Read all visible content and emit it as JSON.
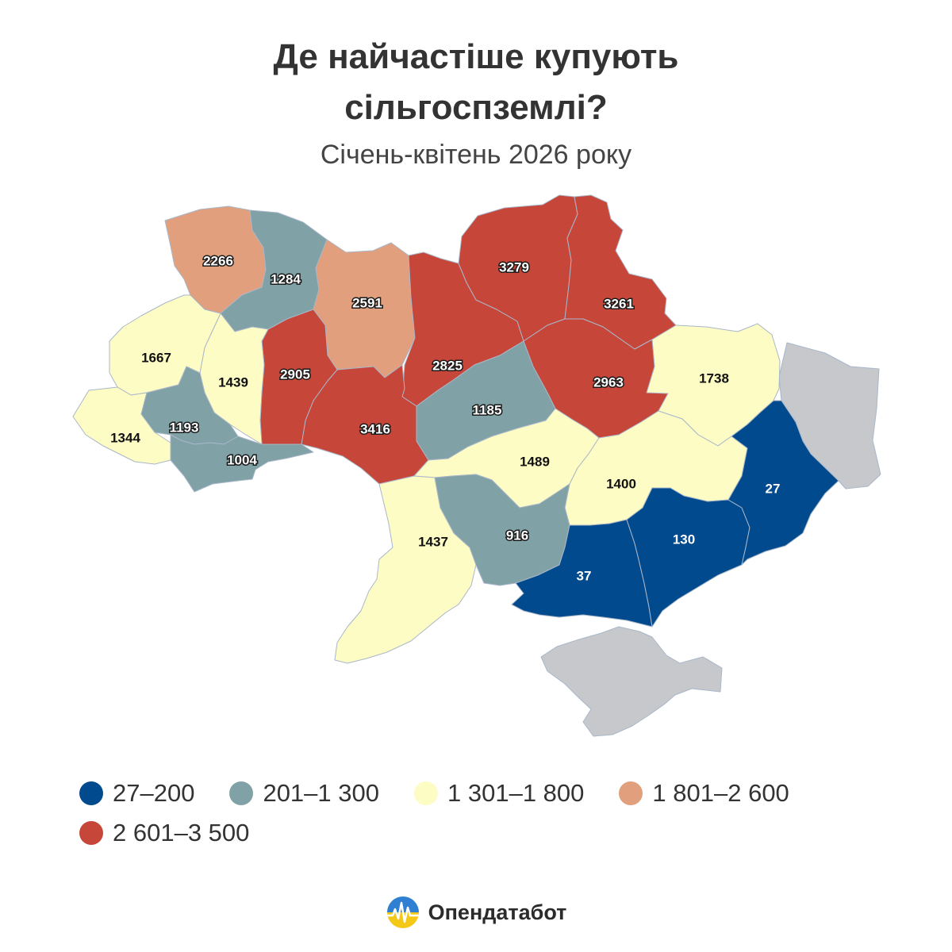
{
  "title_line1": "Де найчастіше купують",
  "title_line2": "сільгоспземлі?",
  "subtitle": "Січень-квітень 2026 року",
  "colors": {
    "bin1": "#024a8e",
    "bin2": "#80a1a5",
    "bin3": "#fefcc5",
    "bin4": "#e19f7d",
    "bin5": "#c6463a",
    "nodata": "#c7c8cb"
  },
  "legend": [
    {
      "label": "27–200",
      "color": "#024a8e"
    },
    {
      "label": "201–1 300",
      "color": "#80a1a5"
    },
    {
      "label": "1 301–1 800",
      "color": "#fefcc5"
    },
    {
      "label": "1 801–2 600",
      "color": "#e19f7d"
    },
    {
      "label": "2 601–3 500",
      "color": "#c6463a"
    }
  ],
  "regions": {
    "volyn": {
      "value": "2266",
      "bin": "bin4"
    },
    "rivne": {
      "value": "1284",
      "bin": "bin2"
    },
    "zhytomyr": {
      "value": "2591",
      "bin": "bin4"
    },
    "kyiv": {
      "value": "2825",
      "bin": "bin5"
    },
    "chernihiv": {
      "value": "3279",
      "bin": "bin5"
    },
    "sumy": {
      "value": "3261",
      "bin": "bin5"
    },
    "kharkiv": {
      "value": "1738",
      "bin": "bin3"
    },
    "poltava": {
      "value": "2963",
      "bin": "bin5"
    },
    "cherkasy": {
      "value": "1185",
      "bin": "bin2"
    },
    "vinnytsia": {
      "value": "3416",
      "bin": "bin5"
    },
    "khmelnytskyi": {
      "value": "2905",
      "bin": "bin5"
    },
    "ternopil": {
      "value": "1439",
      "bin": "bin3"
    },
    "lviv": {
      "value": "1667",
      "bin": "bin3"
    },
    "zakarpattia": {
      "value": "1344",
      "bin": "bin3"
    },
    "ivano_frankivsk": {
      "value": "1193",
      "bin": "bin2"
    },
    "chernivtsi": {
      "value": "1004",
      "bin": "bin2"
    },
    "kirovohrad": {
      "value": "1489",
      "bin": "bin3"
    },
    "dnipro": {
      "value": "1400",
      "bin": "bin3"
    },
    "odesa": {
      "value": "1437",
      "bin": "bin3"
    },
    "mykolaiv": {
      "value": "916",
      "bin": "bin2"
    },
    "kherson": {
      "value": "37",
      "bin": "bin1"
    },
    "zaporizhzhia": {
      "value": "130",
      "bin": "bin1"
    },
    "donetsk": {
      "value": "27",
      "bin": "bin1"
    },
    "luhansk": {
      "value": "",
      "bin": "nodata"
    },
    "crimea": {
      "value": "",
      "bin": "nodata"
    },
    "kyiv_city": {
      "value": "",
      "bin": "nodata"
    }
  },
  "brand": {
    "name": "Опендатабот",
    "logo_icon": "opendatabot-logo-icon"
  }
}
